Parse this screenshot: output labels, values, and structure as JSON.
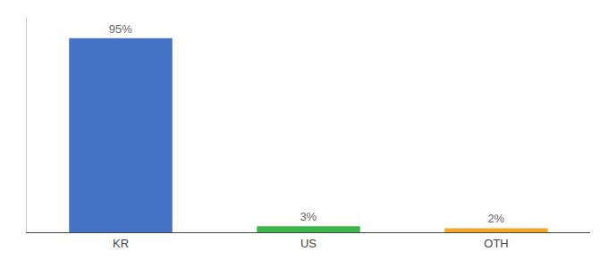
{
  "chart_data": {
    "type": "bar",
    "categories": [
      "KR",
      "US",
      "OTH"
    ],
    "values": [
      95,
      3,
      2
    ],
    "value_labels": [
      "95%",
      "3%",
      "2%"
    ],
    "colors": [
      "#4472c4",
      "#3cb54a",
      "#f5a623"
    ],
    "ylim": [
      0,
      105
    ],
    "grid": false,
    "tick_labels": "x",
    "data_labels": true
  }
}
